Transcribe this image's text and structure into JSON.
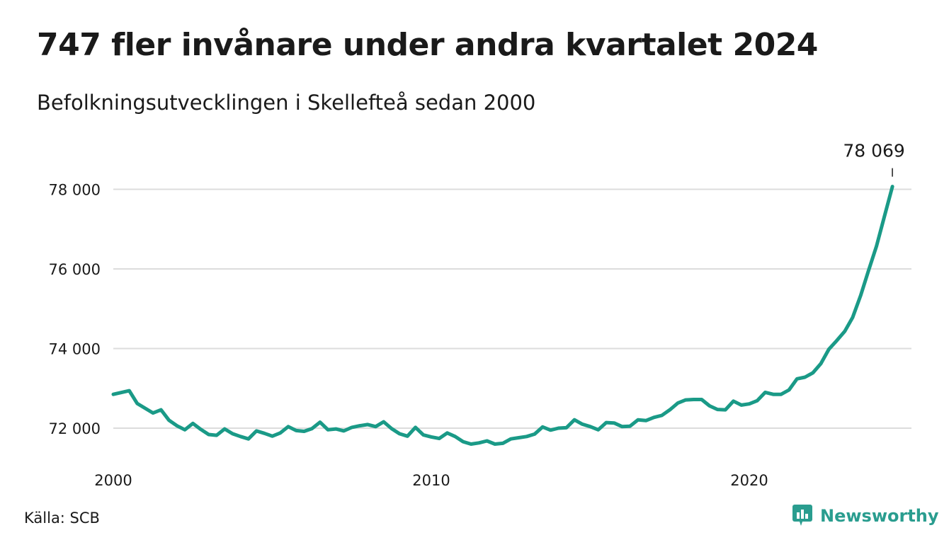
{
  "title": "747 fler invånare under andra kvartalet 2024",
  "subtitle": "Befolkningsutvecklingen i Skellefteå sedan 2000",
  "source": "Källa: SCB",
  "brand": {
    "name": "Newsworthy",
    "icon": "newsworthy-logo-icon",
    "color": "#2a9d8f"
  },
  "chart_data": {
    "type": "line",
    "title": "747 fler invånare under andra kvartalet 2024",
    "subtitle": "Befolkningsutvecklingen i Skellefteå sedan 2000",
    "x_ticks": [
      2000,
      2010,
      2020
    ],
    "y_ticks": [
      72000,
      74000,
      76000,
      78000
    ],
    "y_tick_labels": [
      "72 000",
      "74 000",
      "76 000",
      "78 000"
    ],
    "xlim": [
      2000,
      2025.1
    ],
    "ylim": [
      71200,
      79200
    ],
    "grid": "horizontal",
    "line_color": "#1a9a87",
    "end_label": "78 069",
    "series": [
      {
        "values": [
          [
            2000.0,
            72850
          ],
          [
            2000.5,
            72940
          ],
          [
            2000.75,
            72620
          ],
          [
            2001.0,
            72500
          ],
          [
            2001.25,
            72380
          ],
          [
            2001.5,
            72460
          ],
          [
            2001.75,
            72200
          ],
          [
            2002.0,
            72060
          ],
          [
            2002.25,
            71960
          ],
          [
            2002.5,
            72120
          ],
          [
            2002.75,
            71970
          ],
          [
            2003.0,
            71840
          ],
          [
            2003.25,
            71820
          ],
          [
            2003.5,
            71980
          ],
          [
            2003.75,
            71860
          ],
          [
            2004.0,
            71790
          ],
          [
            2004.25,
            71730
          ],
          [
            2004.5,
            71930
          ],
          [
            2004.75,
            71870
          ],
          [
            2005.0,
            71800
          ],
          [
            2005.25,
            71880
          ],
          [
            2005.5,
            72040
          ],
          [
            2005.75,
            71940
          ],
          [
            2006.0,
            71920
          ],
          [
            2006.25,
            71990
          ],
          [
            2006.5,
            72150
          ],
          [
            2006.75,
            71960
          ],
          [
            2007.0,
            71980
          ],
          [
            2007.25,
            71930
          ],
          [
            2007.5,
            72020
          ],
          [
            2007.75,
            72060
          ],
          [
            2008.0,
            72090
          ],
          [
            2008.25,
            72040
          ],
          [
            2008.5,
            72160
          ],
          [
            2008.75,
            71990
          ],
          [
            2009.0,
            71860
          ],
          [
            2009.25,
            71800
          ],
          [
            2009.5,
            72020
          ],
          [
            2009.75,
            71830
          ],
          [
            2010.0,
            71780
          ],
          [
            2010.25,
            71740
          ],
          [
            2010.5,
            71880
          ],
          [
            2010.75,
            71790
          ],
          [
            2011.0,
            71660
          ],
          [
            2011.25,
            71600
          ],
          [
            2011.5,
            71630
          ],
          [
            2011.75,
            71680
          ],
          [
            2012.0,
            71600
          ],
          [
            2012.25,
            71620
          ],
          [
            2012.5,
            71730
          ],
          [
            2012.75,
            71760
          ],
          [
            2013.0,
            71790
          ],
          [
            2013.25,
            71850
          ],
          [
            2013.5,
            72030
          ],
          [
            2013.75,
            71950
          ],
          [
            2014.0,
            72000
          ],
          [
            2014.25,
            72010
          ],
          [
            2014.5,
            72210
          ],
          [
            2014.75,
            72100
          ],
          [
            2015.0,
            72040
          ],
          [
            2015.25,
            71960
          ],
          [
            2015.5,
            72140
          ],
          [
            2015.75,
            72130
          ],
          [
            2016.0,
            72040
          ],
          [
            2016.25,
            72050
          ],
          [
            2016.5,
            72210
          ],
          [
            2016.75,
            72190
          ],
          [
            2017.0,
            72270
          ],
          [
            2017.25,
            72320
          ],
          [
            2017.5,
            72460
          ],
          [
            2017.75,
            72630
          ],
          [
            2018.0,
            72710
          ],
          [
            2018.25,
            72720
          ],
          [
            2018.5,
            72720
          ],
          [
            2018.75,
            72560
          ],
          [
            2019.0,
            72470
          ],
          [
            2019.25,
            72460
          ],
          [
            2019.5,
            72680
          ],
          [
            2019.75,
            72580
          ],
          [
            2020.0,
            72610
          ],
          [
            2020.25,
            72690
          ],
          [
            2020.5,
            72900
          ],
          [
            2020.75,
            72850
          ],
          [
            2021.0,
            72850
          ],
          [
            2021.25,
            72960
          ],
          [
            2021.5,
            73240
          ],
          [
            2021.75,
            73280
          ],
          [
            2022.0,
            73390
          ],
          [
            2022.25,
            73620
          ],
          [
            2022.5,
            73980
          ],
          [
            2022.75,
            74200
          ],
          [
            2023.0,
            74430
          ],
          [
            2023.25,
            74780
          ],
          [
            2023.5,
            75330
          ],
          [
            2023.75,
            75960
          ],
          [
            2024.0,
            76570
          ],
          [
            2024.25,
            77320
          ],
          [
            2024.5,
            78069
          ]
        ]
      }
    ]
  }
}
